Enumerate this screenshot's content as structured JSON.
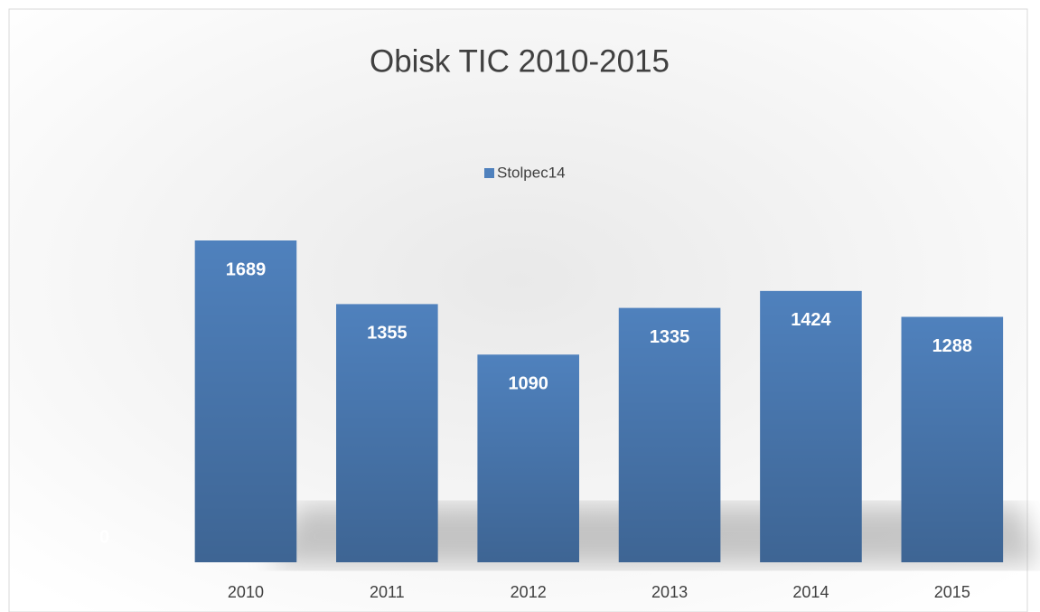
{
  "chart_data": {
    "type": "bar",
    "title": "Obisk TIC 2010-2015",
    "categories": [
      null,
      "2010",
      "2011",
      "2012",
      "2013",
      "2014",
      "2015"
    ],
    "series": [
      {
        "name": "Stolpec14",
        "color": "#4f81bd",
        "values": [
          0,
          1689,
          1355,
          1090,
          1335,
          1424,
          1288
        ]
      }
    ],
    "ylim": [
      0,
      1800
    ],
    "data_labels": true,
    "legend": "top"
  }
}
